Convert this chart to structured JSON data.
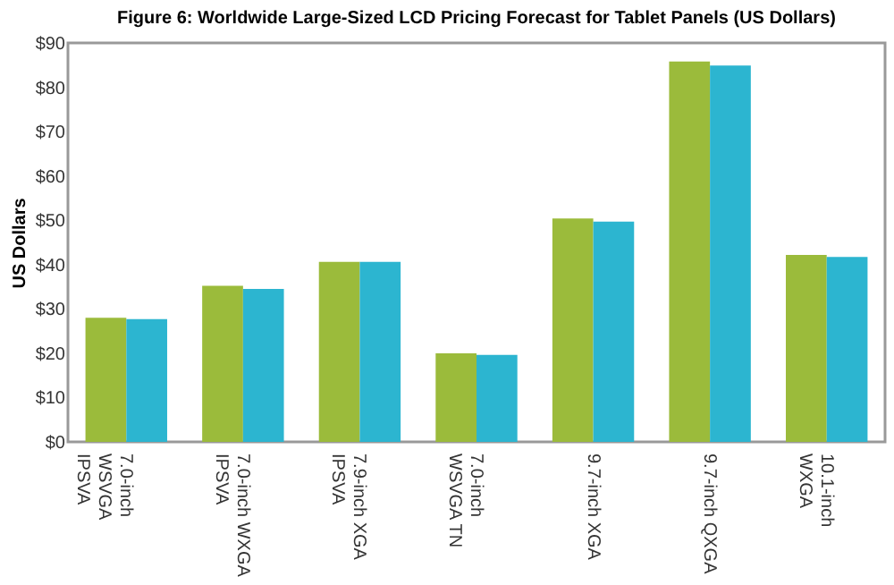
{
  "chart_data": {
    "type": "bar",
    "title": "Figure 6: Worldwide Large-Sized LCD Pricing Forecast for Tablet Panels (US Dollars)",
    "ylabel": "US Dollars",
    "categories": [
      "7.0-inch\nWSVGA\nIPSVA",
      "7.0-inch WXGA\nIPSVA",
      "7.9-inch XGA\nIPSVA",
      "7.0-inch\nWSVGA TN",
      "9.7-inch XGA",
      "9.7-inch QXGA",
      "10.1-inch\nWXGA"
    ],
    "series": [
      {
        "color": "#9bbb3b",
        "values": [
          28.0,
          35.2,
          40.6,
          20.0,
          50.4,
          85.8,
          42.2
        ]
      },
      {
        "color": "#2cb5d0",
        "values": [
          27.7,
          34.5,
          40.6,
          19.6,
          49.7,
          84.9,
          41.7
        ]
      }
    ],
    "ylim": [
      0,
      90
    ],
    "yticks": [
      {
        "value": 0,
        "label": "$0"
      },
      {
        "value": 10,
        "label": "$10"
      },
      {
        "value": 20,
        "label": "$20"
      },
      {
        "value": 30,
        "label": "$30"
      },
      {
        "value": 40,
        "label": "$40"
      },
      {
        "value": 50,
        "label": "$50"
      },
      {
        "value": 60,
        "label": "$60"
      },
      {
        "value": 70,
        "label": "$70"
      },
      {
        "value": 80,
        "label": "$80"
      },
      {
        "value": 90,
        "label": "$90"
      }
    ],
    "grid": false,
    "legend": false
  }
}
